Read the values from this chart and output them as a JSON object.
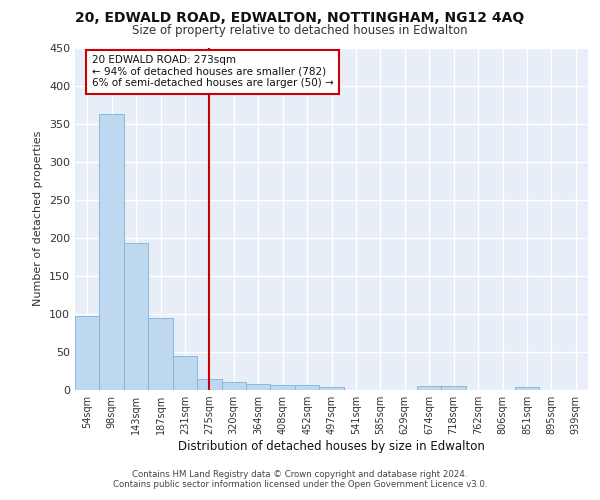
{
  "title": "20, EDWALD ROAD, EDWALTON, NOTTINGHAM, NG12 4AQ",
  "subtitle": "Size of property relative to detached houses in Edwalton",
  "xlabel": "Distribution of detached houses by size in Edwalton",
  "ylabel": "Number of detached properties",
  "bin_labels": [
    "54sqm",
    "98sqm",
    "143sqm",
    "187sqm",
    "231sqm",
    "275sqm",
    "320sqm",
    "364sqm",
    "408sqm",
    "452sqm",
    "497sqm",
    "541sqm",
    "585sqm",
    "629sqm",
    "674sqm",
    "718sqm",
    "762sqm",
    "806sqm",
    "851sqm",
    "895sqm",
    "939sqm"
  ],
  "bar_heights": [
    97,
    362,
    193,
    95,
    45,
    15,
    11,
    8,
    7,
    6,
    4,
    0,
    0,
    0,
    5,
    5,
    0,
    0,
    4,
    0,
    0
  ],
  "bar_color": "#bed8f0",
  "bar_edge_color": "#7cb4d8",
  "property_line_x": 5,
  "property_line_color": "#cc0000",
  "annotation_text": "20 EDWALD ROAD: 273sqm\n← 94% of detached houses are smaller (782)\n6% of semi-detached houses are larger (50) →",
  "annotation_box_facecolor": "#ffffff",
  "annotation_box_edgecolor": "#cc0000",
  "plot_bg_color": "#e8eef8",
  "fig_bg_color": "#ffffff",
  "grid_color": "#ffffff",
  "ylim": [
    0,
    450
  ],
  "yticks": [
    0,
    50,
    100,
    150,
    200,
    250,
    300,
    350,
    400,
    450
  ],
  "footer_line1": "Contains HM Land Registry data © Crown copyright and database right 2024.",
  "footer_line2": "Contains public sector information licensed under the Open Government Licence v3.0."
}
